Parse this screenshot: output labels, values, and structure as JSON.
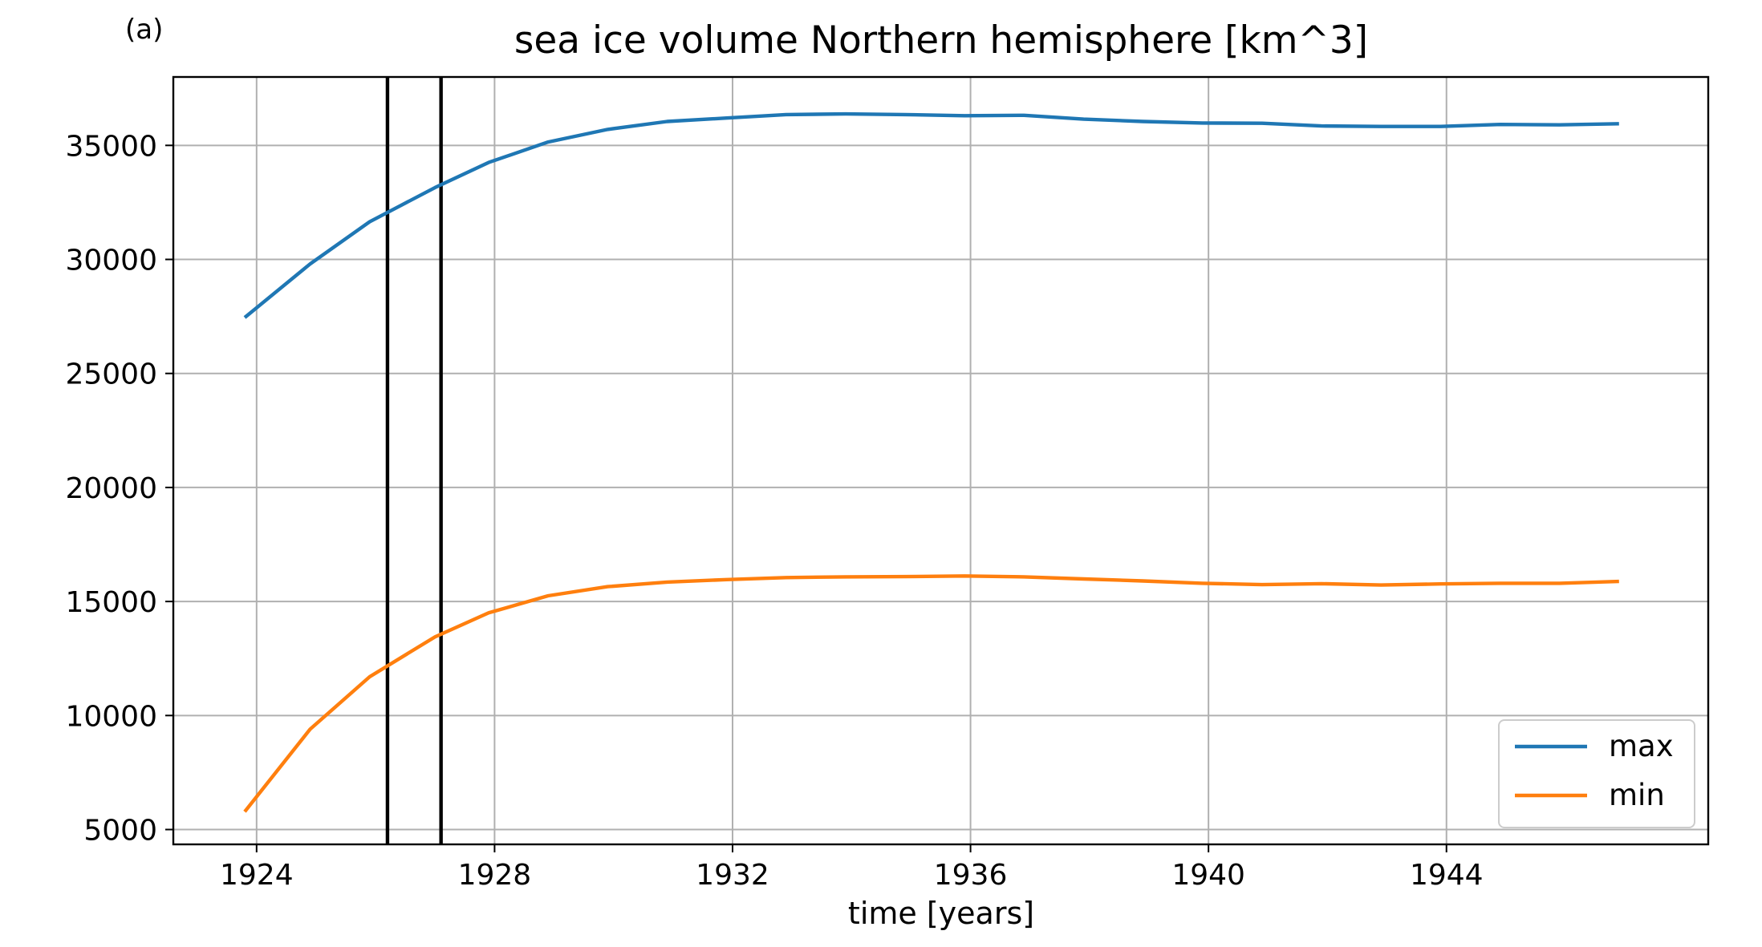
{
  "chart_data": {
    "type": "line",
    "panel_label": "(a)",
    "title": "sea ice volume Northern hemisphere [km^3]",
    "xlabel": "time [years]",
    "ylabel": "",
    "xlim": [
      1922.6,
      1948.4
    ],
    "ylim": [
      4350,
      38000
    ],
    "xticks": [
      1924,
      1928,
      1932,
      1936,
      1940,
      1944
    ],
    "yticks": [
      5000,
      10000,
      15000,
      20000,
      25000,
      30000,
      35000
    ],
    "grid": true,
    "legend": {
      "position": "bottom-right"
    },
    "vertical_lines": [
      1926.2,
      1927.1
    ],
    "series": [
      {
        "name": "max",
        "color": "#1f77b4",
        "points": [
          [
            1923.8,
            27450
          ],
          [
            1924.9,
            29800
          ],
          [
            1925.9,
            31650
          ],
          [
            1927.0,
            33150
          ],
          [
            1927.9,
            34250
          ],
          [
            1928.9,
            35150
          ],
          [
            1929.9,
            35700
          ],
          [
            1930.9,
            36050
          ],
          [
            1931.9,
            36200
          ],
          [
            1932.9,
            36350
          ],
          [
            1933.9,
            36380
          ],
          [
            1934.9,
            36350
          ],
          [
            1935.9,
            36300
          ],
          [
            1936.9,
            36320
          ],
          [
            1937.9,
            36150
          ],
          [
            1938.9,
            36050
          ],
          [
            1939.9,
            35980
          ],
          [
            1940.9,
            35970
          ],
          [
            1941.9,
            35850
          ],
          [
            1942.9,
            35830
          ],
          [
            1943.9,
            35830
          ],
          [
            1944.9,
            35920
          ],
          [
            1945.9,
            35900
          ],
          [
            1946.9,
            35950
          ]
        ]
      },
      {
        "name": "min",
        "color": "#ff7f0e",
        "points": [
          [
            1923.8,
            5780
          ],
          [
            1924.9,
            9400
          ],
          [
            1925.9,
            11700
          ],
          [
            1927.0,
            13450
          ],
          [
            1927.9,
            14500
          ],
          [
            1928.9,
            15250
          ],
          [
            1929.9,
            15650
          ],
          [
            1930.9,
            15850
          ],
          [
            1931.9,
            15960
          ],
          [
            1932.9,
            16050
          ],
          [
            1933.9,
            16080
          ],
          [
            1934.9,
            16090
          ],
          [
            1935.9,
            16120
          ],
          [
            1936.9,
            16080
          ],
          [
            1937.9,
            15990
          ],
          [
            1938.9,
            15900
          ],
          [
            1939.9,
            15800
          ],
          [
            1940.9,
            15740
          ],
          [
            1941.9,
            15780
          ],
          [
            1942.9,
            15720
          ],
          [
            1943.9,
            15770
          ],
          [
            1944.9,
            15800
          ],
          [
            1945.9,
            15800
          ],
          [
            1946.9,
            15880
          ]
        ]
      }
    ]
  }
}
